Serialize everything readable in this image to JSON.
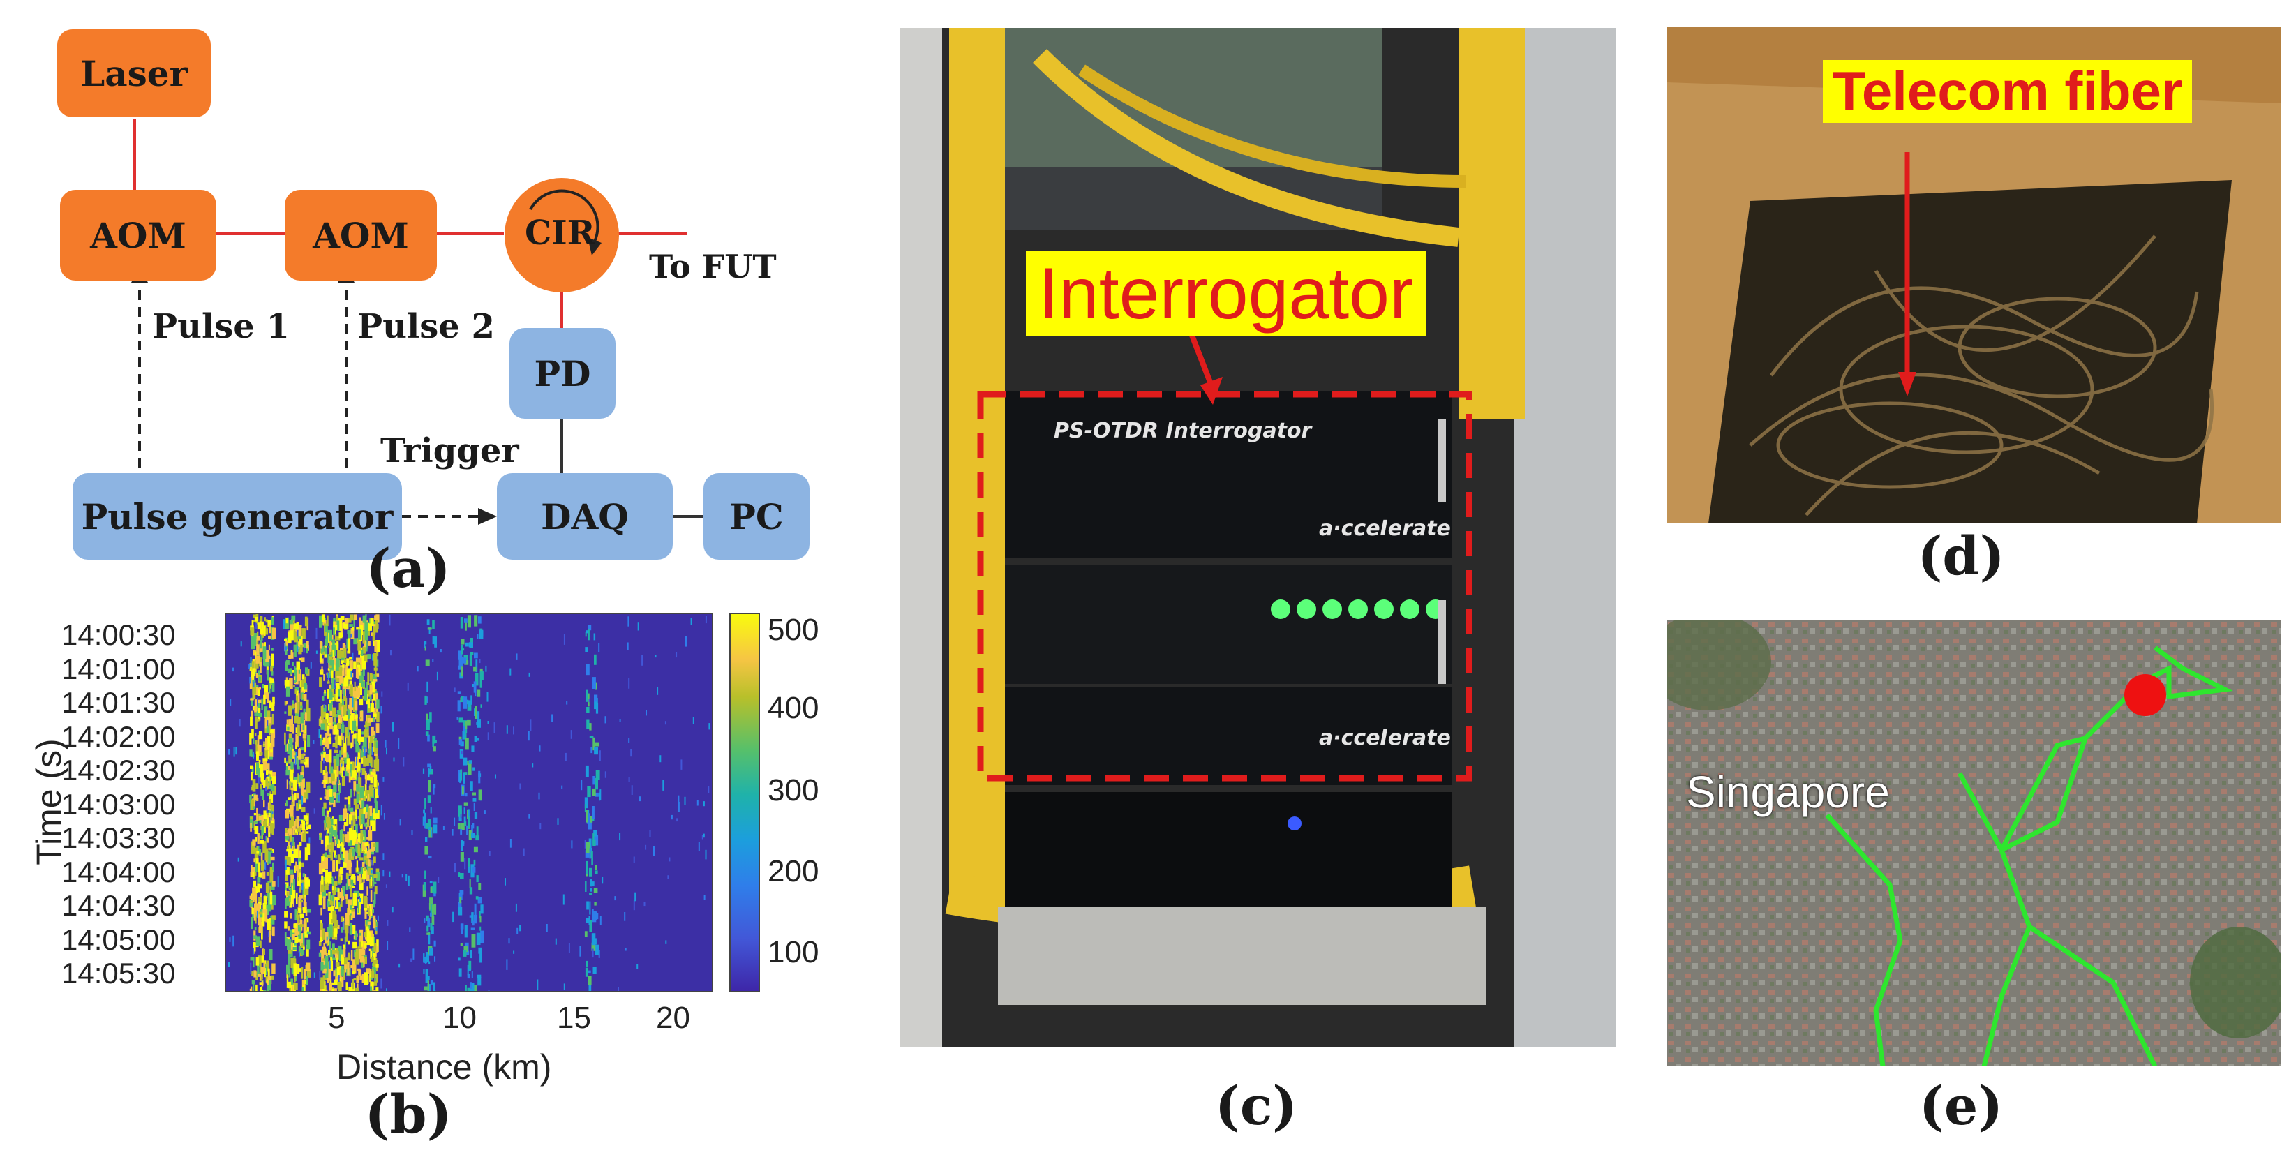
{
  "panel_a": {
    "caption": "(a)",
    "laser": "Laser",
    "aom1": "AOM",
    "aom2": "AOM",
    "cir": "CIR",
    "to_fut": "To FUT",
    "pulse1": "Pulse 1",
    "pulse2": "Pulse 2",
    "pd": "PD",
    "trigger": "Trigger",
    "pulse_generator": "Pulse generator",
    "daq": "DAQ",
    "pc": "PC",
    "colors": {
      "orange": "#f47b2a",
      "blue": "#8db4e2",
      "line": "#e03030"
    }
  },
  "panel_b": {
    "caption": "(b)",
    "xlabel": "Distance (km)",
    "ylabel": "Time (s)",
    "xticks": [
      "5",
      "10",
      "15",
      "20"
    ],
    "yticks": [
      "14:00:30",
      "14:01:00",
      "14:01:30",
      "14:02:00",
      "14:02:30",
      "14:03:00",
      "14:03:30",
      "14:04:00",
      "14:04:30",
      "14:05:00",
      "14:05:30"
    ],
    "colorbar_ticks": [
      "500",
      "400",
      "300",
      "200",
      "100"
    ]
  },
  "chart_data": {
    "type": "heatmap",
    "xlabel": "Distance (km)",
    "ylabel": "Time (s)",
    "xlim": [
      0,
      21
    ],
    "ylim": [
      "14:00:30",
      "14:05:30"
    ],
    "clim": [
      50,
      500
    ],
    "colormap": "parula",
    "high_intensity_bands_km": [
      [
        1,
        2
      ],
      [
        2.5,
        3.5
      ],
      [
        4,
        6.5
      ]
    ],
    "secondary_bands_km": [
      [
        8.5,
        9
      ],
      [
        10,
        11
      ],
      [
        15.5,
        16
      ]
    ]
  },
  "panel_c": {
    "caption": "(c)",
    "callout": "Interrogator",
    "device_title": "PS-OTDR Interrogator",
    "brand": "a·cceIerate"
  },
  "panel_d": {
    "caption": "(d)",
    "callout": "Telecom fiber"
  },
  "panel_e": {
    "caption": "(e)",
    "city_label": "Singapore"
  }
}
